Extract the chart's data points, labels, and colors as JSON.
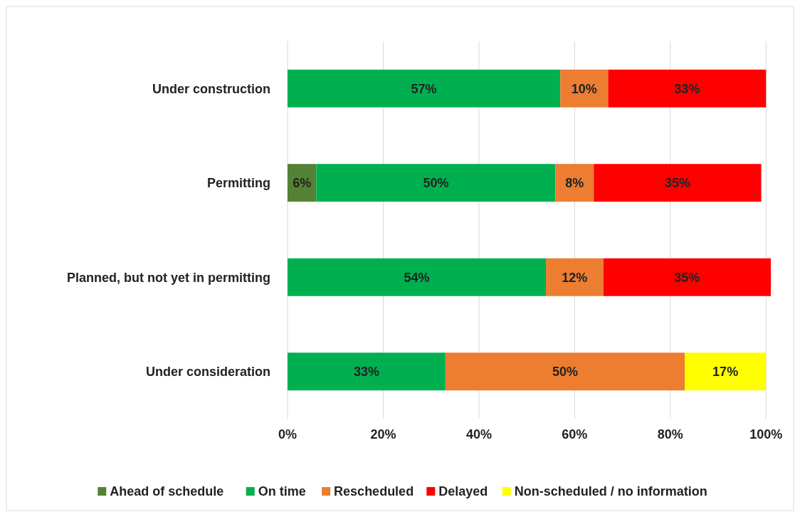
{
  "chart_data": {
    "type": "bar",
    "orientation": "horizontal",
    "stacked": true,
    "categories": [
      "Under construction",
      "Permitting",
      "Planned, but not yet in permitting",
      "Under consideration"
    ],
    "series": [
      {
        "name": "Ahead of schedule",
        "color": "#548235",
        "values": [
          null,
          6,
          null,
          null
        ],
        "value_labels": [
          null,
          "6%",
          null,
          null
        ]
      },
      {
        "name": "On time",
        "color": "#00b050",
        "values": [
          57,
          50,
          54,
          33
        ],
        "value_labels": [
          "57%",
          "50%",
          "54%",
          "33%"
        ]
      },
      {
        "name": "Rescheduled",
        "color": "#ed7d31",
        "values": [
          10,
          8,
          12,
          50
        ],
        "value_labels": [
          "10%",
          "8%",
          "12%",
          "50%"
        ]
      },
      {
        "name": "Delayed",
        "color": "#ff0000",
        "values": [
          33,
          35,
          35,
          null
        ],
        "value_labels": [
          "33%",
          "35%",
          "35%",
          null
        ]
      },
      {
        "name": "Non-scheduled / no information",
        "color": "#ffff00",
        "values": [
          null,
          null,
          null,
          17
        ],
        "value_labels": [
          null,
          null,
          null,
          "17%"
        ]
      }
    ],
    "xlim": [
      0,
      101
    ],
    "xticks": [
      {
        "value": 0,
        "label": "0%"
      },
      {
        "value": 20,
        "label": "20%"
      },
      {
        "value": 40,
        "label": "40%"
      },
      {
        "value": 60,
        "label": "60%"
      },
      {
        "value": 80,
        "label": "80%"
      },
      {
        "value": 100,
        "label": "100%"
      }
    ],
    "grid": "x",
    "legend": "bottom"
  }
}
